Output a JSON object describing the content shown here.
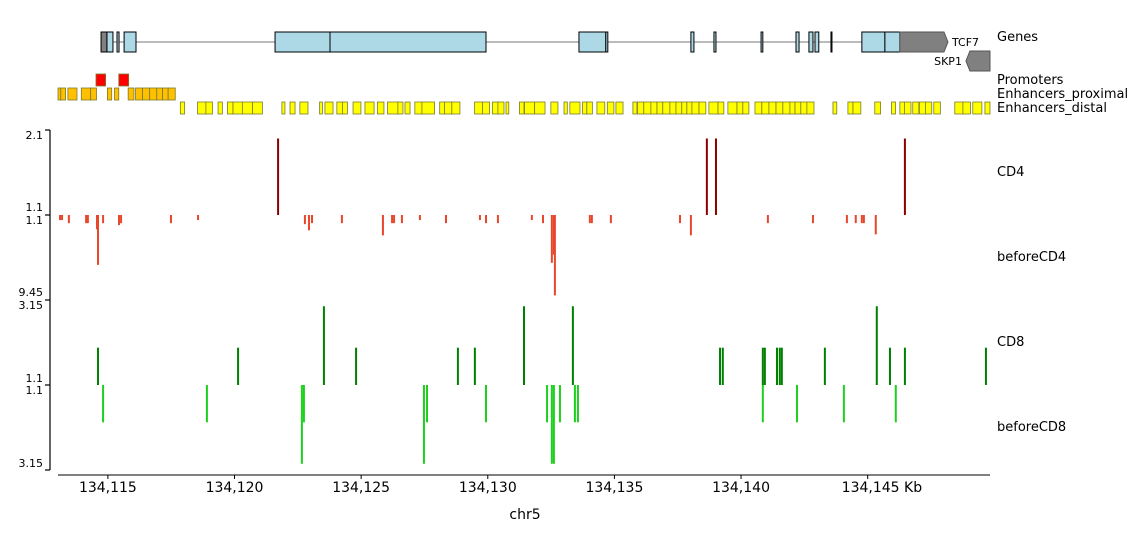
{
  "chart_data": {
    "type": "genome-tracks",
    "chromosome": "chr5",
    "xlabel": "chr5",
    "xlim_kb": [
      134113.03,
      134149.83
    ],
    "x_ticks": [
      {
        "kb": 134115,
        "label": "134,115"
      },
      {
        "kb": 134120,
        "label": "134,120"
      },
      {
        "kb": 134125,
        "label": "134,125"
      },
      {
        "kb": 134130,
        "label": "134,130"
      },
      {
        "kb": 134135,
        "label": "134,135"
      },
      {
        "kb": 134140,
        "label": "134,140"
      },
      {
        "kb": 134145,
        "label": "134,145 Kb"
      }
    ],
    "genes_track": {
      "title": "Genes",
      "genes": [
        {
          "name": "TCF7",
          "strand": "+",
          "start": 134114.73,
          "end": 134148.17,
          "utr": [
            [
              134114.73,
              134114.96
            ],
            [
              134146.27,
              134148.17
            ]
          ],
          "exons": [
            [
              134114.96,
              134115.2
            ],
            [
              134115.36,
              134115.44
            ],
            [
              134115.64,
              134116.11
            ],
            [
              134121.6,
              134123.77
            ],
            [
              134123.77,
              134129.93
            ],
            [
              134133.6,
              134134.66
            ],
            [
              134134.66,
              134134.74
            ],
            [
              134138.02,
              134138.14
            ],
            [
              134138.93,
              134139.01
            ],
            [
              134140.79,
              134140.86
            ],
            [
              134142.17,
              134142.29
            ],
            [
              134142.68,
              134142.84
            ],
            [
              134142.92,
              134143.07
            ],
            [
              134143.55,
              134143.59
            ],
            [
              134144.77,
              134145.68
            ],
            [
              134145.68,
              134146.27
            ]
          ],
          "color": "#add8e6",
          "utr_color": "#808080"
        },
        {
          "name": "SKP1",
          "strand": "-",
          "start": 134148.88,
          "end": 134149.83,
          "utr": [
            [
              134148.88,
              134149.83
            ]
          ],
          "exons": [],
          "color": "#808080",
          "utr_color": "#808080"
        }
      ]
    },
    "bed_tracks": [
      {
        "title": "Promoters",
        "color": "#ff0000",
        "regions": [
          [
            134114.53,
            134114.91
          ],
          [
            134115.43,
            134115.82
          ]
        ]
      },
      {
        "title": "Enhancers_proximal",
        "color": "#ffc000",
        "regions": [
          [
            134113.03,
            134113.14
          ],
          [
            134113.14,
            134113.33
          ],
          [
            134113.42,
            134113.78
          ],
          [
            134113.95,
            134114.32
          ],
          [
            134114.32,
            134114.55
          ],
          [
            134114.98,
            134115.15
          ],
          [
            134115.26,
            134115.43
          ],
          [
            134115.8,
            134116.03
          ],
          [
            134116.09,
            134116.37
          ],
          [
            134116.37,
            134116.65
          ],
          [
            134116.65,
            134116.93
          ],
          [
            134116.93,
            134117.16
          ],
          [
            134117.16,
            134117.38
          ],
          [
            134117.38,
            134117.66
          ]
        ]
      },
      {
        "title": "Enhancers_distal",
        "color": "#ffff00",
        "regions": [
          [
            134117.86,
            134118.03
          ],
          [
            134118.54,
            134118.87
          ],
          [
            134118.87,
            134119.13
          ],
          [
            134119.35,
            134119.52
          ],
          [
            134119.72,
            134119.94
          ],
          [
            134119.94,
            134120.31
          ],
          [
            134120.31,
            134120.71
          ],
          [
            134120.71,
            134121.1
          ],
          [
            134121.87,
            134121.99
          ],
          [
            134122.19,
            134122.39
          ],
          [
            134122.58,
            134122.9
          ],
          [
            134123.36,
            134123.47
          ],
          [
            134123.57,
            134123.89
          ],
          [
            134124.04,
            134124.26
          ],
          [
            134124.26,
            134124.46
          ],
          [
            134124.68,
            134124.99
          ],
          [
            134125.15,
            134125.51
          ],
          [
            134125.64,
            134125.9
          ],
          [
            134126.04,
            134126.45
          ],
          [
            134126.45,
            134126.65
          ],
          [
            134126.73,
            134126.93
          ],
          [
            134127.12,
            134127.4
          ],
          [
            134127.4,
            134127.9
          ],
          [
            134128.1,
            134128.29
          ],
          [
            134128.29,
            134128.58
          ],
          [
            134128.58,
            134128.9
          ],
          [
            134129.48,
            134129.79
          ],
          [
            134129.79,
            134130.07
          ],
          [
            134130.18,
            134130.4
          ],
          [
            134130.4,
            134130.64
          ],
          [
            134130.72,
            134130.83
          ],
          [
            134131.25,
            134131.43
          ],
          [
            134131.45,
            134131.85
          ],
          [
            134131.85,
            134132.26
          ],
          [
            134132.49,
            134132.77
          ],
          [
            134133.01,
            134133.14
          ],
          [
            134133.24,
            134133.64
          ],
          [
            134133.74,
            134133.91
          ],
          [
            134133.91,
            134134.13
          ],
          [
            134134.31,
            134134.62
          ],
          [
            134134.72,
            134134.98
          ],
          [
            134135.06,
            134135.34
          ],
          [
            134135.73,
            134135.89
          ],
          [
            134135.91,
            134136.16
          ],
          [
            134136.16,
            134136.44
          ],
          [
            134136.44,
            134136.68
          ],
          [
            134136.68,
            134136.91
          ],
          [
            134136.91,
            134137.19
          ],
          [
            134137.19,
            134137.43
          ],
          [
            134137.43,
            134137.66
          ],
          [
            134137.66,
            134137.86
          ],
          [
            134137.86,
            134138.06
          ],
          [
            134138.06,
            134138.34
          ],
          [
            134138.34,
            134138.61
          ],
          [
            134138.73,
            134139.09
          ],
          [
            134139.09,
            134139.32
          ],
          [
            134139.48,
            134139.84
          ],
          [
            134139.84,
            134140.07
          ],
          [
            134140.07,
            134140.31
          ],
          [
            134140.55,
            134140.82
          ],
          [
            134140.82,
            134141.1
          ],
          [
            134141.1,
            134141.38
          ],
          [
            134141.38,
            134141.65
          ],
          [
            134141.65,
            134141.93
          ],
          [
            134141.93,
            134142.13
          ],
          [
            134142.13,
            134142.36
          ],
          [
            134142.36,
            134142.6
          ],
          [
            134142.6,
            134142.88
          ],
          [
            134143.63,
            134143.78
          ],
          [
            134144.22,
            134144.42
          ],
          [
            134144.42,
            134144.73
          ],
          [
            134145.28,
            134145.51
          ],
          [
            134145.94,
            134146.1
          ],
          [
            134146.27,
            134146.45
          ],
          [
            134146.45,
            134146.71
          ],
          [
            134146.78,
            134147.02
          ],
          [
            134147.04,
            134147.28
          ],
          [
            134147.28,
            134147.53
          ],
          [
            134147.61,
            134147.87
          ],
          [
            134148.44,
            134148.76
          ],
          [
            134148.76,
            134149.06
          ],
          [
            134149.15,
            134149.51
          ],
          [
            134149.63,
            134149.83
          ]
        ]
      }
    ],
    "signal_tracks": [
      {
        "title": "CD4",
        "color": "#8b0000",
        "inverted": false,
        "ylim": [
          1.1,
          2.1
        ],
        "ytick_labels": [
          "2.1",
          "1.1"
        ],
        "peaks": [
          [
            134121.72,
            2.0
          ],
          [
            134138.65,
            2.0
          ],
          [
            134139.01,
            2.0
          ],
          [
            134146.47,
            2.0
          ]
        ]
      },
      {
        "title": "beforeCD4",
        "color": "#e8472b",
        "inverted": true,
        "ylim": [
          1.1,
          9.45
        ],
        "ytick_labels": [
          "1.1",
          "9.45"
        ],
        "peaks": [
          [
            134113.11,
            1.6
          ],
          [
            134113.19,
            1.6
          ],
          [
            134113.46,
            1.9
          ],
          [
            134114.14,
            1.9
          ],
          [
            134114.21,
            1.9
          ],
          [
            134114.57,
            2.5
          ],
          [
            134114.61,
            6.0
          ],
          [
            134114.81,
            1.9
          ],
          [
            134115.44,
            2.1
          ],
          [
            134115.52,
            1.9
          ],
          [
            134117.49,
            1.9
          ],
          [
            134118.56,
            1.6
          ],
          [
            134122.78,
            2.0
          ],
          [
            134122.94,
            2.6
          ],
          [
            134123.06,
            1.9
          ],
          [
            134124.24,
            1.9
          ],
          [
            134125.86,
            3.1
          ],
          [
            134126.22,
            1.9
          ],
          [
            134126.3,
            1.9
          ],
          [
            134126.61,
            1.9
          ],
          [
            134127.32,
            1.6
          ],
          [
            134128.35,
            1.9
          ],
          [
            134129.69,
            1.6
          ],
          [
            134129.93,
            1.9
          ],
          [
            134130.4,
            1.9
          ],
          [
            134131.74,
            1.6
          ],
          [
            134132.18,
            1.9
          ],
          [
            134132.53,
            5.8
          ],
          [
            134132.61,
            5.0
          ],
          [
            134132.65,
            9.0
          ],
          [
            134134.03,
            1.9
          ],
          [
            134134.11,
            1.9
          ],
          [
            134134.86,
            1.9
          ],
          [
            134137.59,
            1.9
          ],
          [
            134138.02,
            3.1
          ],
          [
            134141.06,
            1.9
          ],
          [
            134142.84,
            1.9
          ],
          [
            134144.18,
            1.9
          ],
          [
            134144.53,
            1.9
          ],
          [
            134144.77,
            1.9
          ],
          [
            134144.85,
            1.9
          ],
          [
            134145.32,
            3.0
          ]
        ]
      },
      {
        "title": "CD8",
        "color": "#008000",
        "inverted": false,
        "ylim": [
          1.1,
          3.15
        ],
        "ytick_labels": [
          "3.15",
          "1.1"
        ],
        "peaks": [
          [
            134114.61,
            2.0
          ],
          [
            134120.14,
            2.0
          ],
          [
            134123.53,
            3.0
          ],
          [
            134124.8,
            2.0
          ],
          [
            134128.82,
            2.0
          ],
          [
            134129.49,
            2.0
          ],
          [
            134131.43,
            3.0
          ],
          [
            134131.43,
            2.0
          ],
          [
            134133.36,
            3.0
          ],
          [
            134139.17,
            2.0
          ],
          [
            134139.28,
            2.0
          ],
          [
            134140.86,
            2.0
          ],
          [
            134140.94,
            2.0
          ],
          [
            134141.42,
            2.0
          ],
          [
            134141.53,
            2.0
          ],
          [
            134141.61,
            2.0
          ],
          [
            134143.31,
            2.0
          ],
          [
            134145.36,
            3.0
          ],
          [
            134145.88,
            2.0
          ],
          [
            134146.47,
            2.0
          ],
          [
            134149.67,
            2.0
          ]
        ]
      },
      {
        "title": "beforeCD8",
        "color": "#1ed01e",
        "inverted": true,
        "ylim": [
          1.1,
          3.15
        ],
        "ytick_labels": [
          "1.1",
          "3.15"
        ],
        "peaks": [
          [
            134114.81,
            2.0
          ],
          [
            134118.91,
            2.0
          ],
          [
            134122.66,
            3.0
          ],
          [
            134122.74,
            2.0
          ],
          [
            134127.48,
            3.0
          ],
          [
            134127.6,
            2.0
          ],
          [
            134129.93,
            2.0
          ],
          [
            134132.34,
            2.0
          ],
          [
            134132.53,
            3.0
          ],
          [
            134132.61,
            3.0
          ],
          [
            134132.85,
            2.0
          ],
          [
            134133.44,
            2.0
          ],
          [
            134133.56,
            2.0
          ],
          [
            134140.86,
            2.0
          ],
          [
            134142.21,
            2.0
          ],
          [
            134144.06,
            2.0
          ],
          [
            134146.11,
            2.0
          ]
        ]
      }
    ]
  }
}
